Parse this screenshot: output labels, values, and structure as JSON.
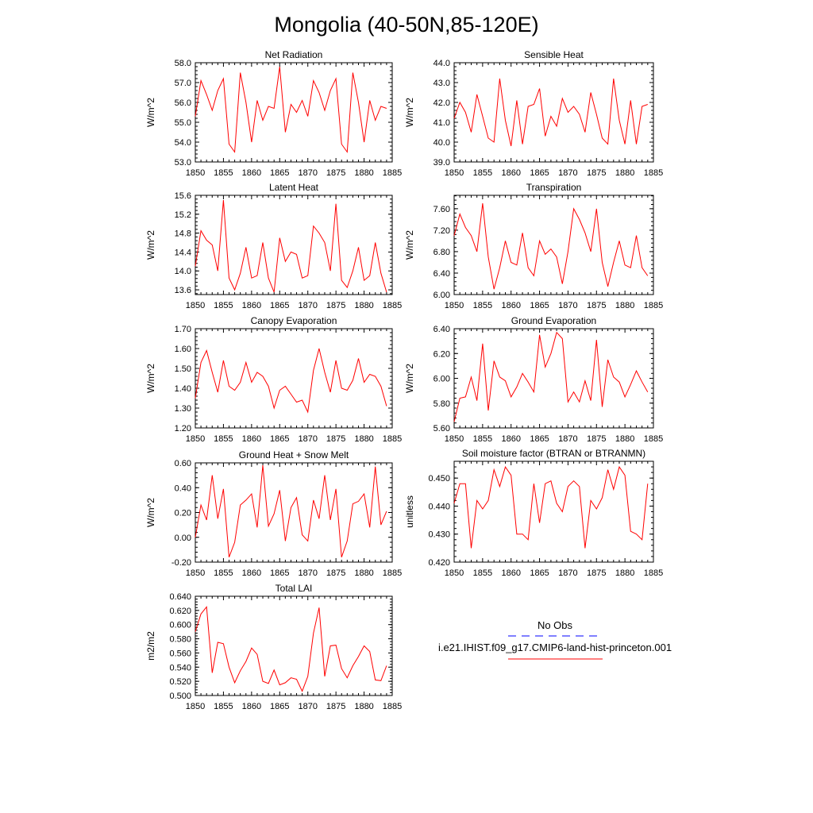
{
  "page_title": "Mongolia (40-50N,85-120E)",
  "x_ticks": [
    1850,
    1855,
    1860,
    1865,
    1870,
    1875,
    1880,
    1885
  ],
  "chart_data": [
    {
      "type": "line",
      "title": "Net Radiation",
      "ylabel": "W/m^2",
      "xlim": [
        1850,
        1885
      ],
      "ylim": [
        53.0,
        58.0
      ],
      "yticks": [
        "53.0",
        "54.0",
        "55.0",
        "56.0",
        "57.0",
        "58.0"
      ],
      "series": [
        {
          "color": "#ff0000",
          "x": [
            1850,
            1851,
            1852,
            1853,
            1854,
            1855,
            1856,
            1857,
            1858,
            1859,
            1860,
            1861,
            1862,
            1863,
            1864,
            1865,
            1866,
            1867,
            1868,
            1869,
            1870,
            1871,
            1872,
            1873,
            1874,
            1875,
            1876,
            1877,
            1878,
            1879,
            1880,
            1881,
            1882,
            1883,
            1884
          ],
          "y": [
            55.3,
            57.1,
            56.4,
            55.6,
            56.6,
            57.2,
            53.9,
            53.5,
            57.5,
            56.0,
            54.0,
            56.1,
            55.1,
            55.8,
            55.7,
            57.8,
            54.5,
            55.9,
            55.5,
            56.1,
            55.3,
            57.1,
            56.5,
            55.6,
            56.6,
            57.2,
            53.9,
            53.5,
            57.5,
            56.0,
            54.0,
            56.1,
            55.1,
            55.8,
            55.7
          ]
        }
      ]
    },
    {
      "type": "line",
      "title": "Sensible Heat",
      "ylabel": "W/m^2",
      "xlim": [
        1850,
        1885
      ],
      "ylim": [
        39.0,
        44.0
      ],
      "yticks": [
        "39.0",
        "40.0",
        "41.0",
        "42.0",
        "43.0",
        "44.0"
      ],
      "series": [
        {
          "color": "#ff0000",
          "x": [
            1850,
            1851,
            1852,
            1853,
            1854,
            1855,
            1856,
            1857,
            1858,
            1859,
            1860,
            1861,
            1862,
            1863,
            1864,
            1865,
            1866,
            1867,
            1868,
            1869,
            1870,
            1871,
            1872,
            1873,
            1874,
            1875,
            1876,
            1877,
            1878,
            1879,
            1880,
            1881,
            1882,
            1883,
            1884
          ],
          "y": [
            41.2,
            42.0,
            41.5,
            40.5,
            42.4,
            41.3,
            40.2,
            40.0,
            43.2,
            41.1,
            39.8,
            42.1,
            39.9,
            41.8,
            41.9,
            42.7,
            40.3,
            41.3,
            40.8,
            42.2,
            41.5,
            41.8,
            41.4,
            40.5,
            42.5,
            41.4,
            40.2,
            39.9,
            43.2,
            41.1,
            39.9,
            42.1,
            39.9,
            41.8,
            41.9
          ]
        }
      ]
    },
    {
      "type": "line",
      "title": "Latent Heat",
      "ylabel": "W/m^2",
      "xlim": [
        1850,
        1885
      ],
      "ylim": [
        13.5,
        15.6
      ],
      "yticks": [
        "13.6",
        "14.0",
        "14.4",
        "14.8",
        "15.2",
        "15.6"
      ],
      "series": [
        {
          "color": "#ff0000",
          "x": [
            1850,
            1851,
            1852,
            1853,
            1854,
            1855,
            1856,
            1857,
            1858,
            1859,
            1860,
            1861,
            1862,
            1863,
            1864,
            1865,
            1866,
            1867,
            1868,
            1869,
            1870,
            1871,
            1872,
            1873,
            1874,
            1875,
            1876,
            1877,
            1878,
            1879,
            1880,
            1881,
            1882,
            1883,
            1884
          ],
          "y": [
            14.1,
            14.85,
            14.65,
            14.55,
            14.0,
            15.5,
            13.85,
            13.6,
            13.95,
            14.5,
            13.85,
            13.9,
            14.6,
            13.85,
            13.55,
            14.7,
            14.2,
            14.4,
            14.35,
            13.85,
            13.9,
            14.95,
            14.8,
            14.6,
            14.0,
            15.42,
            13.8,
            13.65,
            14.0,
            14.5,
            13.8,
            13.9,
            14.6,
            13.95,
            13.55
          ]
        }
      ]
    },
    {
      "type": "line",
      "title": "Transpiration",
      "ylabel": "W/m^2",
      "xlim": [
        1850,
        1885
      ],
      "ylim": [
        6.0,
        7.85
      ],
      "yticks": [
        "6.00",
        "6.40",
        "6.80",
        "7.20",
        "7.60"
      ],
      "series": [
        {
          "color": "#ff0000",
          "x": [
            1850,
            1851,
            1852,
            1853,
            1854,
            1855,
            1856,
            1857,
            1858,
            1859,
            1860,
            1861,
            1862,
            1863,
            1864,
            1865,
            1866,
            1867,
            1868,
            1869,
            1870,
            1871,
            1872,
            1873,
            1874,
            1875,
            1876,
            1877,
            1878,
            1879,
            1880,
            1881,
            1882,
            1883,
            1884
          ],
          "y": [
            7.1,
            7.5,
            7.25,
            7.1,
            6.8,
            7.7,
            6.7,
            6.1,
            6.5,
            7.0,
            6.6,
            6.55,
            7.15,
            6.5,
            6.35,
            7.0,
            6.75,
            6.85,
            6.7,
            6.2,
            6.8,
            7.6,
            7.4,
            7.15,
            6.8,
            7.6,
            6.6,
            6.15,
            6.6,
            7.0,
            6.55,
            6.5,
            7.1,
            6.5,
            6.35
          ]
        }
      ]
    },
    {
      "type": "line",
      "title": "Canopy Evaporation",
      "ylabel": "W/m^2",
      "xlim": [
        1850,
        1885
      ],
      "ylim": [
        1.2,
        1.7
      ],
      "yticks": [
        "1.20",
        "1.30",
        "1.40",
        "1.50",
        "1.60",
        "1.70"
      ],
      "series": [
        {
          "color": "#ff0000",
          "x": [
            1850,
            1851,
            1852,
            1853,
            1854,
            1855,
            1856,
            1857,
            1858,
            1859,
            1860,
            1861,
            1862,
            1863,
            1864,
            1865,
            1866,
            1867,
            1868,
            1869,
            1870,
            1871,
            1872,
            1873,
            1874,
            1875,
            1876,
            1877,
            1878,
            1879,
            1880,
            1881,
            1882,
            1883,
            1884
          ],
          "y": [
            1.35,
            1.53,
            1.59,
            1.48,
            1.38,
            1.54,
            1.41,
            1.39,
            1.43,
            1.53,
            1.43,
            1.48,
            1.46,
            1.41,
            1.3,
            1.39,
            1.41,
            1.37,
            1.33,
            1.34,
            1.28,
            1.49,
            1.6,
            1.48,
            1.38,
            1.54,
            1.4,
            1.39,
            1.44,
            1.55,
            1.43,
            1.47,
            1.46,
            1.41,
            1.31
          ]
        }
      ]
    },
    {
      "type": "line",
      "title": "Ground Evaporation",
      "ylabel": "W/m^2",
      "xlim": [
        1850,
        1885
      ],
      "ylim": [
        5.6,
        6.4
      ],
      "yticks": [
        "5.60",
        "5.80",
        "6.00",
        "6.20",
        "6.40"
      ],
      "series": [
        {
          "color": "#ff0000",
          "x": [
            1850,
            1851,
            1852,
            1853,
            1854,
            1855,
            1856,
            1857,
            1858,
            1859,
            1860,
            1861,
            1862,
            1863,
            1864,
            1865,
            1866,
            1867,
            1868,
            1869,
            1870,
            1871,
            1872,
            1873,
            1874,
            1875,
            1876,
            1877,
            1878,
            1879,
            1880,
            1881,
            1882,
            1883,
            1884
          ],
          "y": [
            5.65,
            5.84,
            5.85,
            6.01,
            5.82,
            6.28,
            5.74,
            6.14,
            6.01,
            5.98,
            5.85,
            5.93,
            6.04,
            5.97,
            5.89,
            6.35,
            6.09,
            6.2,
            6.37,
            6.32,
            5.81,
            5.89,
            5.81,
            5.98,
            5.82,
            6.31,
            5.77,
            6.15,
            6.01,
            5.97,
            5.85,
            5.95,
            6.06,
            5.97,
            5.89
          ]
        }
      ]
    },
    {
      "type": "line",
      "title": "Ground Heat + Snow Melt",
      "ylabel": "W/m^2",
      "xlim": [
        1850,
        1885
      ],
      "ylim": [
        -0.2,
        0.6
      ],
      "yticks": [
        "-0.20",
        "0.00",
        "0.20",
        "0.40",
        "0.60"
      ],
      "series": [
        {
          "color": "#ff0000",
          "x": [
            1850,
            1851,
            1852,
            1853,
            1854,
            1855,
            1856,
            1857,
            1858,
            1859,
            1860,
            1861,
            1862,
            1863,
            1864,
            1865,
            1866,
            1867,
            1868,
            1869,
            1870,
            1871,
            1872,
            1873,
            1874,
            1875,
            1876,
            1877,
            1878,
            1879,
            1880,
            1881,
            1882,
            1883,
            1884
          ],
          "y": [
            0.0,
            0.26,
            0.14,
            0.5,
            0.15,
            0.39,
            -0.16,
            -0.04,
            0.26,
            0.3,
            0.35,
            0.08,
            0.58,
            0.09,
            0.19,
            0.38,
            -0.03,
            0.24,
            0.32,
            0.02,
            -0.03,
            0.3,
            0.15,
            0.5,
            0.14,
            0.39,
            -0.16,
            -0.03,
            0.27,
            0.29,
            0.35,
            0.08,
            0.57,
            0.1,
            0.21
          ]
        }
      ]
    },
    {
      "type": "line",
      "title": "Soil moisture factor (BTRAN or BTRANMN)",
      "ylabel": "unitless",
      "xlim": [
        1850,
        1885
      ],
      "ylim": [
        0.42,
        0.456
      ],
      "yticks": [
        "0.420",
        "0.430",
        "0.440",
        "0.450"
      ],
      "series": [
        {
          "color": "#ff0000",
          "x": [
            1850,
            1851,
            1852,
            1853,
            1854,
            1855,
            1856,
            1857,
            1858,
            1859,
            1860,
            1861,
            1862,
            1863,
            1864,
            1865,
            1866,
            1867,
            1868,
            1869,
            1870,
            1871,
            1872,
            1873,
            1874,
            1875,
            1876,
            1877,
            1878,
            1879,
            1880,
            1881,
            1882,
            1883,
            1884
          ],
          "y": [
            0.441,
            0.448,
            0.448,
            0.425,
            0.442,
            0.439,
            0.442,
            0.453,
            0.447,
            0.454,
            0.451,
            0.43,
            0.43,
            0.428,
            0.448,
            0.434,
            0.448,
            0.449,
            0.441,
            0.438,
            0.447,
            0.449,
            0.447,
            0.425,
            0.442,
            0.439,
            0.443,
            0.453,
            0.446,
            0.454,
            0.451,
            0.431,
            0.43,
            0.428,
            0.448
          ]
        }
      ]
    },
    {
      "type": "line",
      "title": "Total LAI",
      "ylabel": "m2/m2",
      "xlim": [
        1850,
        1885
      ],
      "ylim": [
        0.5,
        0.64
      ],
      "yticks": [
        "0.500",
        "0.520",
        "0.540",
        "0.560",
        "0.580",
        "0.600",
        "0.620",
        "0.640"
      ],
      "series": [
        {
          "color": "#ff0000",
          "x": [
            1850,
            1851,
            1852,
            1853,
            1854,
            1855,
            1856,
            1857,
            1858,
            1859,
            1860,
            1861,
            1862,
            1863,
            1864,
            1865,
            1866,
            1867,
            1868,
            1869,
            1870,
            1871,
            1872,
            1873,
            1874,
            1875,
            1876,
            1877,
            1878,
            1879,
            1880,
            1881,
            1882,
            1883,
            1884
          ],
          "y": [
            0.59,
            0.615,
            0.625,
            0.532,
            0.575,
            0.573,
            0.54,
            0.518,
            0.535,
            0.548,
            0.567,
            0.558,
            0.52,
            0.517,
            0.536,
            0.515,
            0.518,
            0.525,
            0.523,
            0.506,
            0.527,
            0.588,
            0.624,
            0.527,
            0.57,
            0.571,
            0.538,
            0.525,
            0.542,
            0.555,
            0.57,
            0.562,
            0.522,
            0.521,
            0.542
          ]
        }
      ]
    }
  ],
  "legend": {
    "items": [
      {
        "label": "No Obs",
        "color": "#0000ff",
        "dashed": true
      },
      {
        "label": "i.e21.IHIST.f09_g17.CMIP6-land-hist-princeton.001",
        "color": "#ff0000",
        "dashed": false
      }
    ]
  }
}
